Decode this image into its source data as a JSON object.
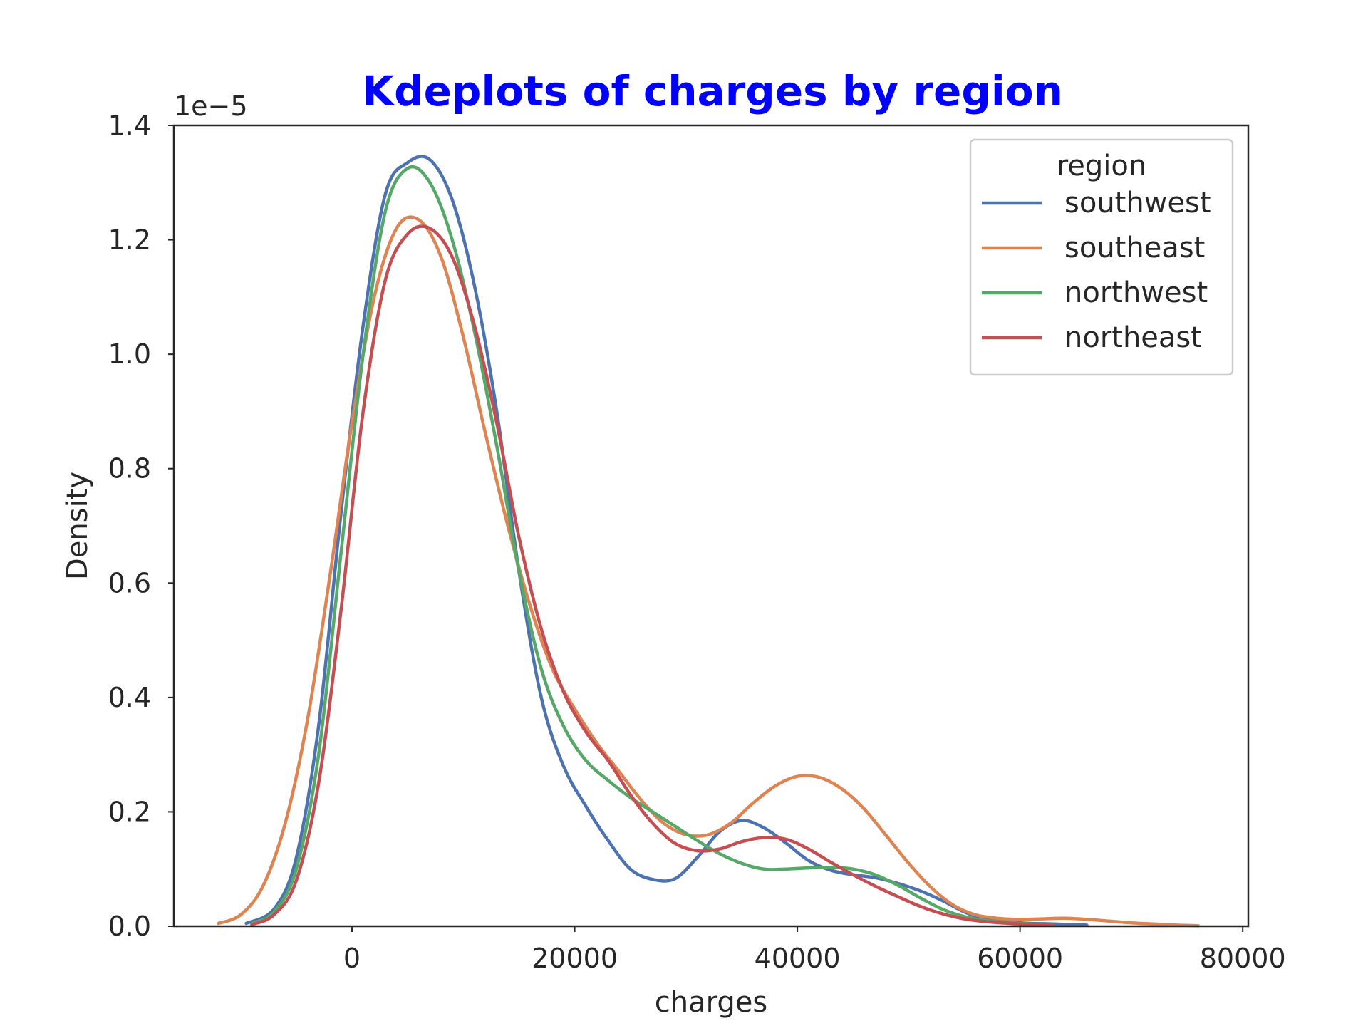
{
  "chart_data": {
    "type": "line",
    "title": "Kdeplots of charges by region",
    "xlabel": "charges",
    "ylabel": "Density",
    "y_offset_label": "1e−5",
    "xlim": [
      -16000,
      80500
    ],
    "ylim": [
      0,
      1.4
    ],
    "y_unit_note": "values in units of 1e-5",
    "x_ticks": [
      0,
      20000,
      40000,
      60000,
      80000
    ],
    "y_ticks": [
      "0.0",
      "0.2",
      "0.4",
      "0.6",
      "0.8",
      "1.0",
      "1.2",
      "1.4"
    ],
    "grid": false,
    "legend": {
      "title": "region",
      "placement": "top-right"
    },
    "series": [
      {
        "name": "southwest",
        "color": "#4c72b0",
        "x": [
          -9500,
          -7000,
          -5000,
          -3000,
          -1000,
          1000,
          3000,
          5000,
          7000,
          9000,
          11000,
          13000,
          15000,
          17000,
          19000,
          21000,
          23000,
          25000,
          27000,
          29000,
          31000,
          33000,
          35000,
          37000,
          39000,
          41000,
          43000,
          45000,
          47000,
          49000,
          51000,
          53000,
          55000,
          57000,
          60000,
          63000,
          66000
        ],
        "y": [
          0.005,
          0.03,
          0.12,
          0.35,
          0.72,
          1.05,
          1.28,
          1.335,
          1.34,
          1.27,
          1.12,
          0.9,
          0.62,
          0.4,
          0.28,
          0.21,
          0.15,
          0.1,
          0.082,
          0.083,
          0.12,
          0.165,
          0.185,
          0.172,
          0.145,
          0.115,
          0.098,
          0.09,
          0.085,
          0.075,
          0.062,
          0.045,
          0.025,
          0.012,
          0.006,
          0.004,
          0.002
        ]
      },
      {
        "name": "southeast",
        "color": "#dd8452",
        "x": [
          -12000,
          -10000,
          -8000,
          -6000,
          -4000,
          -2000,
          0,
          2000,
          4000,
          6000,
          8000,
          10000,
          12000,
          14000,
          16000,
          18000,
          20000,
          22000,
          24000,
          26000,
          28000,
          30000,
          32000,
          34000,
          36000,
          38000,
          40000,
          42000,
          44000,
          46000,
          48000,
          50000,
          52000,
          54000,
          56000,
          58000,
          60000,
          62000,
          64000,
          66000,
          68000,
          70000,
          72000,
          74000,
          76000
        ],
        "y": [
          0.005,
          0.02,
          0.07,
          0.18,
          0.36,
          0.61,
          0.88,
          1.1,
          1.22,
          1.235,
          1.17,
          1.03,
          0.86,
          0.7,
          0.56,
          0.45,
          0.38,
          0.32,
          0.27,
          0.22,
          0.18,
          0.16,
          0.16,
          0.18,
          0.215,
          0.245,
          0.262,
          0.26,
          0.24,
          0.205,
          0.158,
          0.11,
          0.068,
          0.037,
          0.02,
          0.014,
          0.012,
          0.013,
          0.014,
          0.012,
          0.009,
          0.006,
          0.004,
          0.002,
          0.001
        ]
      },
      {
        "name": "northwest",
        "color": "#55a868",
        "x": [
          -9000,
          -7000,
          -5000,
          -3000,
          -1000,
          1000,
          3000,
          5000,
          7000,
          9000,
          11000,
          13000,
          15000,
          17000,
          19000,
          21000,
          23000,
          25000,
          27000,
          29000,
          31000,
          33000,
          35000,
          37000,
          39000,
          41000,
          43000,
          45000,
          47000,
          49000,
          51000,
          53000,
          55000,
          57000,
          60000,
          63000
        ],
        "y": [
          0.005,
          0.025,
          0.1,
          0.3,
          0.65,
          1.0,
          1.25,
          1.325,
          1.3,
          1.2,
          1.04,
          0.84,
          0.62,
          0.45,
          0.35,
          0.29,
          0.255,
          0.225,
          0.2,
          0.175,
          0.15,
          0.127,
          0.11,
          0.1,
          0.1,
          0.102,
          0.103,
          0.1,
          0.09,
          0.072,
          0.05,
          0.03,
          0.017,
          0.01,
          0.005,
          0.002
        ]
      },
      {
        "name": "northeast",
        "color": "#c44e52",
        "x": [
          -9000,
          -7000,
          -5000,
          -3000,
          -1000,
          1000,
          3000,
          5000,
          7000,
          9000,
          11000,
          13000,
          15000,
          17000,
          19000,
          21000,
          23000,
          25000,
          27000,
          29000,
          31000,
          33000,
          35000,
          37000,
          39000,
          41000,
          43000,
          45000,
          47000,
          49000,
          51000,
          53000,
          55000,
          57000,
          60000,
          63000
        ],
        "y": [
          0.003,
          0.02,
          0.08,
          0.25,
          0.55,
          0.9,
          1.13,
          1.21,
          1.22,
          1.17,
          1.05,
          0.88,
          0.68,
          0.52,
          0.41,
          0.34,
          0.29,
          0.23,
          0.18,
          0.145,
          0.132,
          0.135,
          0.148,
          0.155,
          0.152,
          0.135,
          0.112,
          0.09,
          0.07,
          0.052,
          0.035,
          0.022,
          0.013,
          0.008,
          0.004,
          0.002
        ]
      }
    ]
  }
}
